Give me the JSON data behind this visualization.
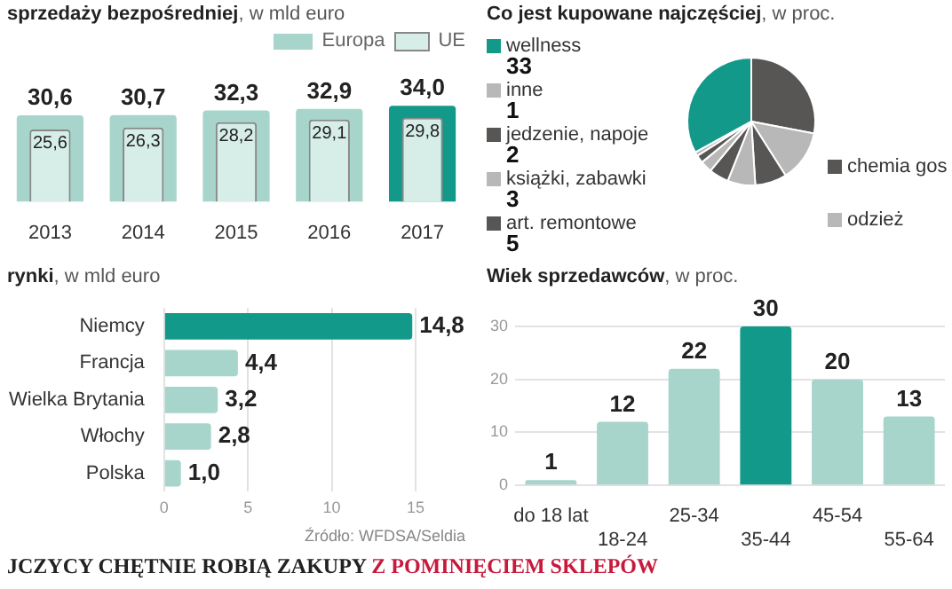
{
  "chart_data": [
    {
      "type": "bar",
      "title": "sprzedaży bezpośredniej, w mld euro",
      "categories": [
        "2013",
        "2014",
        "2015",
        "2016",
        "2017"
      ],
      "legend": "top right",
      "series": [
        {
          "name": "Europa",
          "color": "#a8d5cb",
          "colors": [
            "#a8d5cb",
            "#a8d5cb",
            "#a8d5cb",
            "#a8d5cb",
            "#12998a"
          ],
          "values": [
            30.6,
            30.7,
            32.3,
            32.9,
            34.0
          ],
          "value_labels": [
            "30,6",
            "30,7",
            "32,3",
            "32,9",
            "34,0"
          ]
        },
        {
          "name": "UE",
          "color": "#d6ede8",
          "values": [
            25.6,
            26.3,
            28.2,
            29.1,
            29.8
          ],
          "value_labels": [
            "25,6",
            "26,3",
            "28,2",
            "29,1",
            "29,8"
          ]
        }
      ]
    },
    {
      "type": "pie",
      "title": "Co jest kupowane najczęściej, w proc.",
      "legend": "left",
      "categories": [
        null,
        null,
        "chemia gos",
        "odzież",
        "art. remontowe",
        "książki, zabawki",
        "jedzenie, napoje",
        "inne",
        "wellness"
      ],
      "values": [
        28,
        13,
        8,
        7,
        5,
        3,
        2,
        1,
        33
      ],
      "colors": [
        "#585655",
        "#b8b8b8",
        "#585655",
        "#b8b8b8",
        "#585655",
        "#b8b8b8",
        "#585655",
        "#b8b8b8",
        "#12998a"
      ],
      "value_labels": [
        null,
        null,
        null,
        null,
        "5",
        "3",
        "2",
        "1",
        "33"
      ]
    },
    {
      "type": "bar",
      "orientation": "horizontal",
      "title": "rynki, w mld euro",
      "categories": [
        "Niemcy",
        "Francja",
        "Wielka Brytania",
        "Włochy",
        "Polska"
      ],
      "values": [
        14.8,
        4.4,
        3.2,
        2.8,
        1.0
      ],
      "colors": [
        "#12998a",
        "#a8d5cb",
        "#a8d5cb",
        "#a8d5cb",
        "#a8d5cb"
      ],
      "value_labels": [
        "14,8",
        "4,4",
        "3,2",
        "2,8",
        "1,0"
      ],
      "xlim": [
        0,
        15
      ],
      "xticks": [
        0,
        5,
        10,
        15
      ],
      "grid": "x",
      "annotations": [
        "Źródło: WFDSA/Seldia",
        "JCZYCY CHĘTNIE ROBIĄ ZAKUPY",
        "Z POMINIĘCIEM SKLEPÓW"
      ]
    },
    {
      "type": "bar",
      "title": "Wiek sprzedawców, w proc.",
      "categories": [
        "do 18 lat",
        "18-24",
        "25-34",
        "35-44",
        "45-54",
        "55-64"
      ],
      "values": [
        1,
        12,
        22,
        30,
        20,
        13
      ],
      "colors": [
        "#a8d5cb",
        "#a8d5cb",
        "#a8d5cb",
        "#12998a",
        "#a8d5cb",
        "#a8d5cb"
      ],
      "ylim": [
        0,
        30
      ],
      "yticks": [
        0,
        10,
        20,
        30
      ],
      "grid": "y",
      "data_labels": true
    }
  ]
}
